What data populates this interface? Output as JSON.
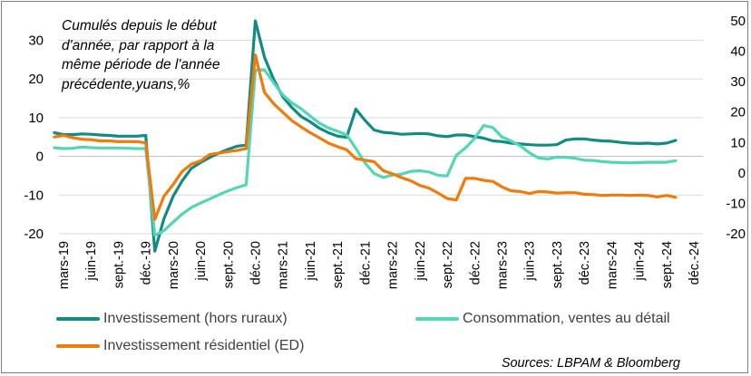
{
  "chart_data": {
    "type": "line",
    "annotation": "Cumulés depuis le début d'année, par rapport à la même période de l'année précédente,yuans,%",
    "source": "Sources: LBPAM & Bloomberg",
    "left_axis": {
      "ylim": [
        -20,
        35
      ],
      "ticks": [
        "-20",
        "-10",
        "0",
        "10",
        "20",
        "30"
      ]
    },
    "right_axis": {
      "ylim": [
        -20,
        50
      ],
      "ticks": [
        "-20",
        "-10",
        "0",
        "10",
        "20",
        "30",
        "40",
        "50"
      ]
    },
    "x_tick_labels": [
      "mars-19",
      "juin-19",
      "sept.-19",
      "déc.-19",
      "mars-20",
      "juin-20",
      "sept.-20",
      "déc.-20",
      "mars-21",
      "juin-21",
      "sept.-21",
      "déc.-21",
      "mars-22",
      "juin-22",
      "sept.-22",
      "déc.-22",
      "mars-23",
      "juin-23",
      "sept.-23",
      "déc.-23",
      "mars-24",
      "juin-24",
      "sept.-24",
      "déc.-24"
    ],
    "x_start": "2019-02",
    "series": [
      {
        "name": "Investissement (hors ruraux)",
        "axis": "left",
        "color": "#138a84",
        "values": [
          6.1,
          5.6,
          5.6,
          5.8,
          5.7,
          5.5,
          5.4,
          5.2,
          5.2,
          5.2,
          5.4,
          -24.5,
          -16.1,
          -10.3,
          -6.3,
          -3.1,
          -1.6,
          -0.3,
          0.8,
          1.8,
          2.6,
          2.9,
          35.0,
          25.6,
          19.9,
          15.4,
          12.6,
          10.3,
          8.9,
          7.3,
          6.1,
          5.2,
          4.9,
          12.2,
          9.3,
          6.8,
          6.2,
          6.0,
          5.7,
          5.8,
          5.9,
          5.8,
          5.3,
          5.1,
          5.5,
          5.5,
          5.1,
          4.7,
          4.0,
          3.8,
          3.4,
          3.2,
          3.0,
          2.9,
          2.9,
          3.0,
          4.2,
          4.5,
          4.5,
          4.2,
          4.0,
          3.9,
          3.6,
          3.4,
          3.3,
          3.4,
          3.2,
          3.4,
          4.1
        ]
      },
      {
        "name": "Consommation, ventes au détail",
        "axis": "right",
        "color": "#52d6b6",
        "values": [
          8.3,
          8.0,
          8.1,
          8.5,
          8.3,
          8.2,
          8.2,
          8.2,
          8.1,
          8.0,
          8.0,
          -20.5,
          -19.0,
          -16.2,
          -13.5,
          -11.4,
          -9.9,
          -8.6,
          -7.2,
          -5.9,
          -4.8,
          -3.9,
          33.8,
          33.9,
          29.6,
          25.7,
          23.0,
          21.1,
          18.7,
          16.4,
          14.8,
          13.7,
          12.5,
          8.1,
          3.3,
          -0.2,
          -1.5,
          -0.7,
          -0.4,
          0.5,
          0.7,
          0.3,
          -0.8,
          -1.0,
          5.8,
          8.2,
          11.4,
          15.6,
          14.9,
          11.8,
          10.5,
          8.9,
          6.6,
          4.9,
          4.6,
          5.2,
          5.1,
          4.8,
          4.2,
          4.1,
          3.7,
          3.5,
          3.4,
          3.3,
          3.4,
          3.5,
          3.5,
          3.5,
          4.0
        ]
      },
      {
        "name": "Investissement résidentiel (ED)",
        "axis": "left",
        "color": "#f07a0a",
        "values": [
          5.0,
          5.4,
          4.8,
          4.4,
          4.3,
          4.0,
          4.0,
          3.8,
          3.8,
          3.8,
          3.5,
          -16.3,
          -10.3,
          -7.3,
          -3.9,
          -2.0,
          -1.2,
          0.5,
          0.8,
          1.2,
          1.5,
          2.0,
          26.2,
          16.5,
          13.6,
          11.4,
          9.2,
          7.6,
          6.1,
          4.8,
          3.4,
          2.5,
          1.7,
          -0.6,
          -1.0,
          -1.4,
          -3.7,
          -4.5,
          -5.5,
          -6.3,
          -7.5,
          -8.2,
          -9.5,
          -10.9,
          -11.3,
          -5.7,
          -5.7,
          -6.2,
          -6.5,
          -7.9,
          -8.9,
          -9.1,
          -9.6,
          -9.1,
          -9.2,
          -9.5,
          -9.4,
          -9.4,
          -9.8,
          -9.9,
          -10.1,
          -10.0,
          -10.0,
          -10.1,
          -10.0,
          -10.1,
          -10.5,
          -10.1,
          -10.6
        ]
      }
    ]
  }
}
